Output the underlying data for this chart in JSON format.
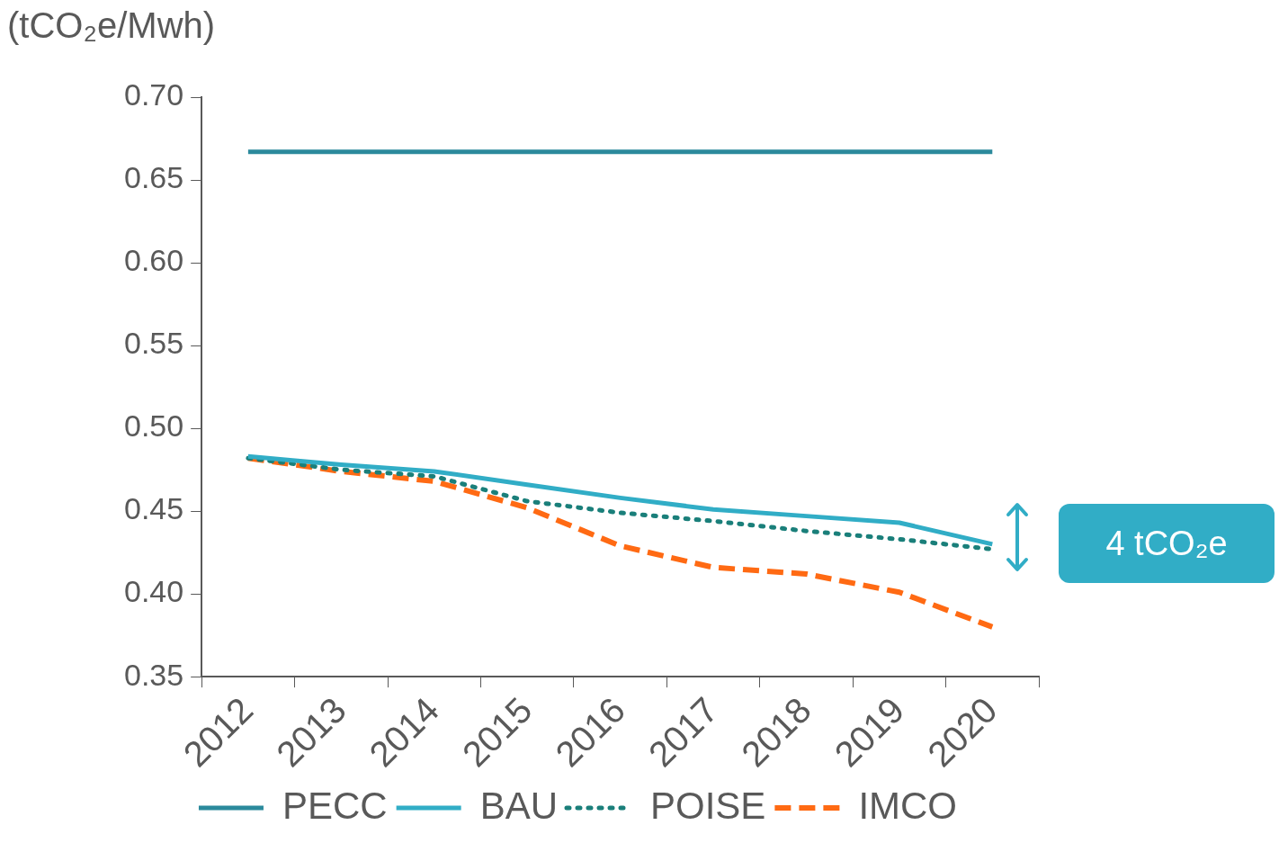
{
  "chart_data": {
    "type": "line",
    "ylabel": "(tCO₂e/Mwh)",
    "categories": [
      "2012",
      "2013",
      "2014",
      "2015",
      "2016",
      "2017",
      "2018",
      "2019",
      "2020"
    ],
    "series": [
      {
        "name": "PECC",
        "color": "#2b8a9c",
        "line_style": "solid",
        "values": [
          0.667,
          0.667,
          0.667,
          0.667,
          0.667,
          0.667,
          0.667,
          0.667,
          0.667
        ]
      },
      {
        "name": "BAU",
        "color": "#31adc6",
        "line_style": "solid",
        "values": [
          0.483,
          0.478,
          0.474,
          0.466,
          0.458,
          0.451,
          0.447,
          0.443,
          0.43
        ]
      },
      {
        "name": "POISE",
        "color": "#1a7f7a",
        "line_style": "dotted",
        "values": [
          0.482,
          0.475,
          0.471,
          0.456,
          0.449,
          0.444,
          0.438,
          0.433,
          0.427
        ]
      },
      {
        "name": "IMCO",
        "color": "#ff6a13",
        "line_style": "dashed",
        "values": [
          0.482,
          0.474,
          0.468,
          0.452,
          0.429,
          0.416,
          0.412,
          0.401,
          0.38
        ]
      }
    ],
    "ylim": [
      0.35,
      0.7
    ],
    "yticks": [
      0.35,
      {
        "value": 0.4,
        "label": "0.40"
      },
      0.45,
      {
        "value": 0.5,
        "label": "0.50"
      },
      0.55,
      {
        "value": 0.6,
        "label": "0.60"
      },
      0.65,
      {
        "value": 0.7,
        "label": "0.70"
      }
    ],
    "grid": false,
    "legend": "bottom",
    "marker": "none",
    "annotations": [
      "4 tCO₂e"
    ]
  }
}
